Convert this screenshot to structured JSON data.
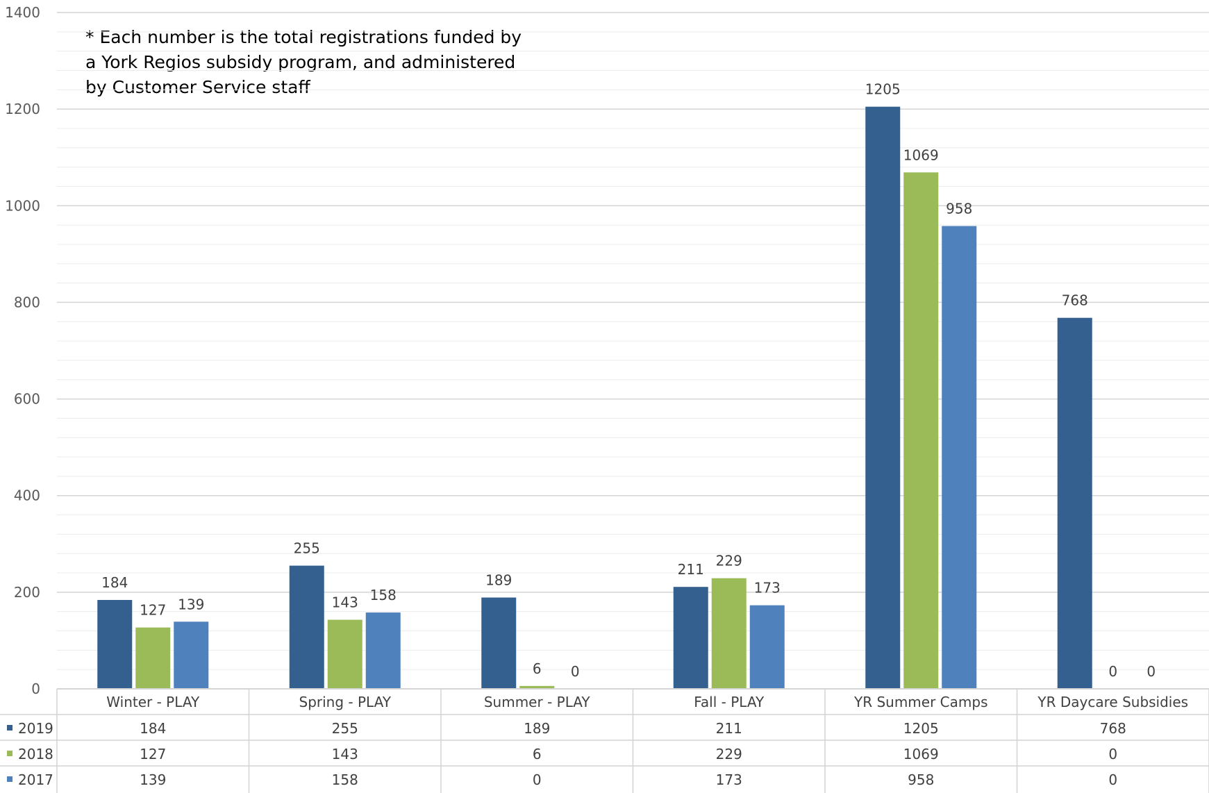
{
  "chart_data": {
    "type": "bar",
    "annotation": [
      "* Each number is the total registrations funded by",
      "a York Regios subsidy program, and administered",
      "by Customer Service staff"
    ],
    "categories": [
      "Winter - PLAY",
      "Spring - PLAY",
      "Summer - PLAY",
      "Fall - PLAY",
      "YR Summer Camps",
      "YR Daycare Subsidies"
    ],
    "series": [
      {
        "name": "2019",
        "values": [
          184,
          255,
          189,
          211,
          1205,
          768
        ],
        "color": "#34608f"
      },
      {
        "name": "2018",
        "values": [
          127,
          143,
          6,
          229,
          1069,
          0
        ],
        "color": "#9bbb59"
      },
      {
        "name": "2017",
        "values": [
          139,
          158,
          0,
          173,
          958,
          0
        ],
        "color": "#4f81bd"
      }
    ],
    "ylim": [
      0,
      1400
    ],
    "yticks": [
      0,
      200,
      400,
      600,
      800,
      1000,
      1200,
      1400
    ],
    "minor_gridlines_step": 40,
    "data_labels": true,
    "grid": true,
    "data_table": true,
    "legend": "data-table-rows",
    "xlabel": "",
    "ylabel": "",
    "title": ""
  }
}
